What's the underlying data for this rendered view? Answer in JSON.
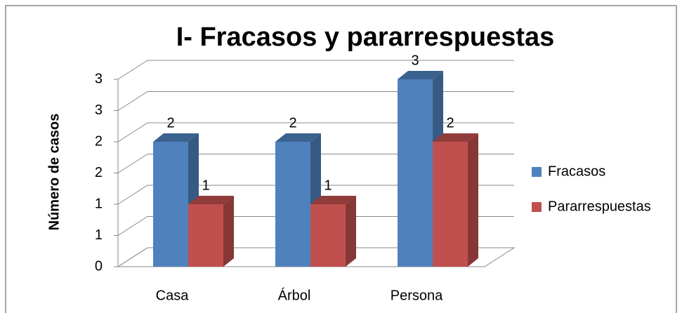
{
  "chart_data": {
    "type": "bar3d",
    "title": "I- Fracasos y pararrespuestas",
    "ylabel": "Número de casos",
    "categories": [
      "Casa",
      "Árbol",
      "Persona"
    ],
    "series": [
      {
        "name": "Fracasos",
        "color": "#4f81bd",
        "values": [
          2,
          2,
          3
        ]
      },
      {
        "name": "Pararrespuestas",
        "color": "#c0504d",
        "values": [
          1,
          1,
          2
        ]
      }
    ],
    "ylim": [
      0,
      3
    ],
    "yticks": [
      0,
      {
        "value": 0.5,
        "label": "1"
      },
      1,
      {
        "value": 1.5,
        "label": "2"
      },
      2,
      {
        "value": 2.5,
        "label": "3"
      },
      3
    ],
    "grid": true,
    "legend": "right"
  }
}
